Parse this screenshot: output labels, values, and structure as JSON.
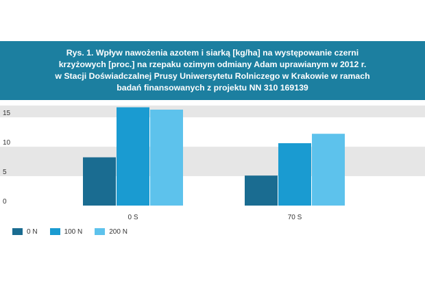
{
  "title": "Rys. 1. Wpływ nawożenia azotem i siarką [kg/ha] na występowanie czerni\nkrzyżowych [proc.] na rzepaku ozimym odmiany Adam uprawianym w 2012 r.\nw Stacji Doświadczalnej Prusy Uniwersytetu Rolniczego w Krakowie w ramach\nbadań finansowanych z projektu NN 310 169139",
  "colors": {
    "title_bg": "#1c7fa0",
    "band": "#e6e6e6",
    "series": [
      "#1a6c91",
      "#1a9bd1",
      "#5dc2ec"
    ]
  },
  "chart_data": {
    "type": "bar",
    "categories": [
      "0 S",
      "70 S"
    ],
    "series": [
      {
        "name": "0 N",
        "values": [
          8.2,
          5.1
        ]
      },
      {
        "name": "100 N",
        "values": [
          16.7,
          10.6
        ]
      },
      {
        "name": "200 N",
        "values": [
          16.3,
          12.2
        ]
      }
    ],
    "ylim": [
      0,
      17
    ],
    "yticks": [
      0,
      5,
      10,
      15
    ],
    "grid": "alternating horizontal bands",
    "legend_position": "bottom-left",
    "xlabel": "",
    "ylabel": ""
  }
}
